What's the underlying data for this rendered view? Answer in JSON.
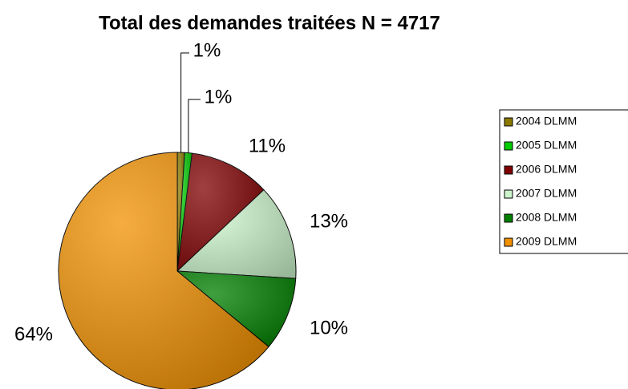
{
  "chart_data": {
    "type": "pie",
    "title": "Total des demandes traitées N = 4717",
    "categories": [
      "2004 DLMM",
      "2005 DLMM",
      "2006 DLMM",
      "2007 DLMM",
      "2008 DLMM",
      "2009 DLMM"
    ],
    "values": [
      1,
      1,
      11,
      13,
      10,
      64
    ],
    "value_labels": [
      "1%",
      "1%",
      "11%",
      "13%",
      "10%",
      "64%"
    ],
    "colors": [
      "#8a7a00",
      "#00cc00",
      "#800000",
      "#ccf5cc",
      "#008000",
      "#f29100"
    ],
    "legend": "right"
  }
}
